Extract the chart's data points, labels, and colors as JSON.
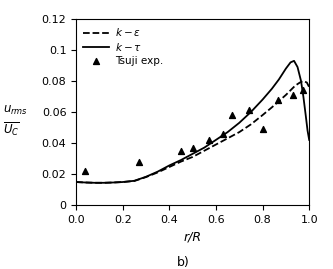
{
  "title": "",
  "xlabel": "r/R",
  "ylabel_line1": "$u_{rms}$",
  "ylabel_line2": "$U_C$",
  "xlim": [
    0,
    1.0
  ],
  "ylim": [
    0,
    0.12
  ],
  "yticks": [
    0,
    0.02,
    0.04,
    0.06,
    0.08,
    0.1,
    0.12
  ],
  "xticks": [
    0,
    0.2,
    0.4,
    0.6,
    0.8,
    1.0
  ],
  "subplot_label": "b)",
  "legend": {
    "k_eps_label": "$k - \\varepsilon$",
    "k_tau_label": "$k - \\tau$",
    "exp_label": "Tsuji exp."
  },
  "k_eps_x": [
    0.0,
    0.04,
    0.08,
    0.12,
    0.16,
    0.2,
    0.25,
    0.3,
    0.35,
    0.4,
    0.45,
    0.5,
    0.55,
    0.6,
    0.65,
    0.7,
    0.75,
    0.8,
    0.84,
    0.87,
    0.9,
    0.92,
    0.94,
    0.96,
    0.975,
    0.99,
    1.0
  ],
  "k_eps_y": [
    0.0148,
    0.0145,
    0.0143,
    0.0143,
    0.0145,
    0.0148,
    0.0155,
    0.018,
    0.021,
    0.0245,
    0.028,
    0.031,
    0.035,
    0.039,
    0.043,
    0.047,
    0.052,
    0.058,
    0.063,
    0.067,
    0.071,
    0.074,
    0.077,
    0.079,
    0.08,
    0.079,
    0.076
  ],
  "k_tau_x": [
    0.0,
    0.04,
    0.08,
    0.12,
    0.16,
    0.2,
    0.25,
    0.3,
    0.35,
    0.4,
    0.45,
    0.5,
    0.55,
    0.6,
    0.65,
    0.7,
    0.75,
    0.8,
    0.84,
    0.87,
    0.9,
    0.92,
    0.935,
    0.95,
    0.965,
    0.975,
    0.985,
    0.993,
    1.0
  ],
  "k_tau_y": [
    0.0148,
    0.0145,
    0.0143,
    0.0143,
    0.0145,
    0.0148,
    0.0156,
    0.0182,
    0.0215,
    0.0255,
    0.029,
    0.033,
    0.037,
    0.042,
    0.047,
    0.053,
    0.06,
    0.068,
    0.075,
    0.081,
    0.088,
    0.092,
    0.093,
    0.089,
    0.08,
    0.07,
    0.058,
    0.048,
    0.042
  ],
  "exp_x": [
    0.04,
    0.27,
    0.45,
    0.5,
    0.57,
    0.63,
    0.67,
    0.74,
    0.8,
    0.865,
    0.93,
    0.975
  ],
  "exp_y": [
    0.022,
    0.028,
    0.035,
    0.037,
    0.042,
    0.046,
    0.058,
    0.061,
    0.049,
    0.068,
    0.071,
    0.074
  ],
  "figsize": [
    3.33,
    2.69
  ],
  "dpi": 100
}
